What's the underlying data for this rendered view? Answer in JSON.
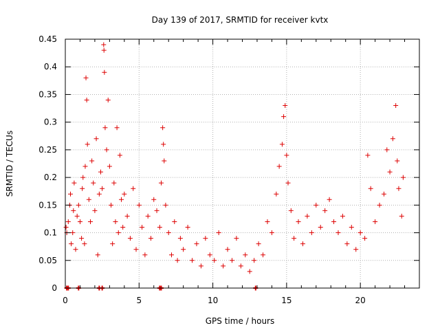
{
  "chart_data": {
    "type": "scatter",
    "title": "Day 139 of 2017, SRMTID for receiver kvtx",
    "xlabel": "GPS time / hours",
    "ylabel": "SRMTID / TECUs",
    "xlim": [
      0,
      24
    ],
    "ylim": [
      0,
      0.45
    ],
    "x_ticks": [
      0,
      5,
      10,
      15,
      20
    ],
    "y_ticks": [
      0,
      0.05,
      0.1,
      0.15,
      0.2,
      0.25,
      0.3,
      0.35,
      0.4,
      0.45
    ],
    "x_tick_labels": [
      "0",
      "5",
      "10",
      "15",
      "20"
    ],
    "y_tick_labels": [
      "0",
      "0.05",
      "0.1",
      "0.15",
      "0.2",
      "0.25",
      "0.3",
      "0.35",
      "0.4",
      "0.45"
    ],
    "grid": true,
    "marker": "+",
    "colors": {
      "series": "#dd0000",
      "grid": "#b0b0b0",
      "axis": "#000000"
    },
    "series": [
      {
        "name": "SRMTID",
        "points": [
          [
            0.05,
            0.11
          ],
          [
            0.1,
            0.1
          ],
          [
            0.2,
            0.12
          ],
          [
            0.3,
            0.15
          ],
          [
            0.35,
            0.17
          ],
          [
            0.4,
            0.08
          ],
          [
            0.5,
            0.1
          ],
          [
            0.55,
            0.14
          ],
          [
            0.6,
            0.19
          ],
          [
            0.7,
            0.07
          ],
          [
            0.8,
            0.13
          ],
          [
            0.9,
            0.15
          ],
          [
            1.0,
            0.12
          ],
          [
            1.1,
            0.09
          ],
          [
            1.15,
            0.18
          ],
          [
            1.2,
            0.2
          ],
          [
            1.3,
            0.08
          ],
          [
            1.35,
            0.22
          ],
          [
            1.4,
            0.38
          ],
          [
            1.45,
            0.34
          ],
          [
            1.5,
            0.26
          ],
          [
            1.6,
            0.16
          ],
          [
            1.7,
            0.12
          ],
          [
            1.8,
            0.23
          ],
          [
            1.9,
            0.19
          ],
          [
            2.0,
            0.14
          ],
          [
            2.1,
            0.27
          ],
          [
            2.2,
            0.06
          ],
          [
            2.3,
            0.17
          ],
          [
            2.4,
            0.21
          ],
          [
            2.5,
            0.18
          ],
          [
            2.6,
            0.44
          ],
          [
            2.62,
            0.43
          ],
          [
            2.65,
            0.39
          ],
          [
            2.7,
            0.29
          ],
          [
            2.8,
            0.25
          ],
          [
            2.9,
            0.34
          ],
          [
            3.0,
            0.22
          ],
          [
            3.1,
            0.15
          ],
          [
            3.2,
            0.08
          ],
          [
            3.3,
            0.19
          ],
          [
            3.4,
            0.12
          ],
          [
            3.5,
            0.29
          ],
          [
            3.6,
            0.1
          ],
          [
            3.7,
            0.24
          ],
          [
            3.8,
            0.16
          ],
          [
            3.9,
            0.11
          ],
          [
            4.0,
            0.17
          ],
          [
            4.2,
            0.13
          ],
          [
            4.4,
            0.09
          ],
          [
            4.6,
            0.18
          ],
          [
            4.8,
            0.07
          ],
          [
            5.0,
            0.15
          ],
          [
            5.2,
            0.11
          ],
          [
            5.4,
            0.06
          ],
          [
            5.6,
            0.13
          ],
          [
            5.8,
            0.09
          ],
          [
            6.0,
            0.16
          ],
          [
            6.2,
            0.14
          ],
          [
            6.4,
            0.11
          ],
          [
            6.5,
            0.19
          ],
          [
            6.6,
            0.29
          ],
          [
            6.65,
            0.26
          ],
          [
            6.7,
            0.23
          ],
          [
            6.8,
            0.15
          ],
          [
            7.0,
            0.1
          ],
          [
            7.2,
            0.06
          ],
          [
            7.4,
            0.12
          ],
          [
            7.6,
            0.05
          ],
          [
            7.8,
            0.09
          ],
          [
            8.0,
            0.07
          ],
          [
            8.3,
            0.11
          ],
          [
            8.6,
            0.05
          ],
          [
            8.9,
            0.08
          ],
          [
            9.2,
            0.04
          ],
          [
            9.5,
            0.09
          ],
          [
            9.8,
            0.06
          ],
          [
            10.1,
            0.05
          ],
          [
            10.4,
            0.1
          ],
          [
            10.7,
            0.04
          ],
          [
            11.0,
            0.07
          ],
          [
            11.3,
            0.05
          ],
          [
            11.6,
            0.09
          ],
          [
            11.9,
            0.04
          ],
          [
            12.2,
            0.06
          ],
          [
            12.5,
            0.03
          ],
          [
            12.8,
            0.05
          ],
          [
            13.1,
            0.08
          ],
          [
            13.4,
            0.06
          ],
          [
            13.7,
            0.12
          ],
          [
            14.0,
            0.1
          ],
          [
            14.3,
            0.17
          ],
          [
            14.5,
            0.22
          ],
          [
            14.7,
            0.26
          ],
          [
            14.8,
            0.31
          ],
          [
            14.9,
            0.33
          ],
          [
            15.0,
            0.24
          ],
          [
            15.1,
            0.19
          ],
          [
            15.3,
            0.14
          ],
          [
            15.5,
            0.09
          ],
          [
            15.8,
            0.12
          ],
          [
            16.1,
            0.08
          ],
          [
            16.4,
            0.13
          ],
          [
            16.7,
            0.1
          ],
          [
            17.0,
            0.15
          ],
          [
            17.3,
            0.11
          ],
          [
            17.6,
            0.14
          ],
          [
            17.9,
            0.16
          ],
          [
            18.2,
            0.12
          ],
          [
            18.5,
            0.1
          ],
          [
            18.8,
            0.13
          ],
          [
            19.1,
            0.08
          ],
          [
            19.4,
            0.11
          ],
          [
            19.7,
            0.07
          ],
          [
            20.0,
            0.1
          ],
          [
            20.3,
            0.09
          ],
          [
            20.5,
            0.24
          ],
          [
            20.7,
            0.18
          ],
          [
            21.0,
            0.12
          ],
          [
            21.3,
            0.15
          ],
          [
            21.6,
            0.17
          ],
          [
            21.8,
            0.25
          ],
          [
            22.0,
            0.21
          ],
          [
            22.2,
            0.27
          ],
          [
            22.4,
            0.33
          ],
          [
            22.5,
            0.23
          ],
          [
            22.6,
            0.18
          ],
          [
            22.8,
            0.13
          ],
          [
            22.9,
            0.2
          ]
        ]
      }
    ],
    "zero_markers_x": [
      0.1,
      0.2,
      0.9,
      2.3,
      2.5,
      6.4,
      6.5,
      12.9
    ]
  }
}
